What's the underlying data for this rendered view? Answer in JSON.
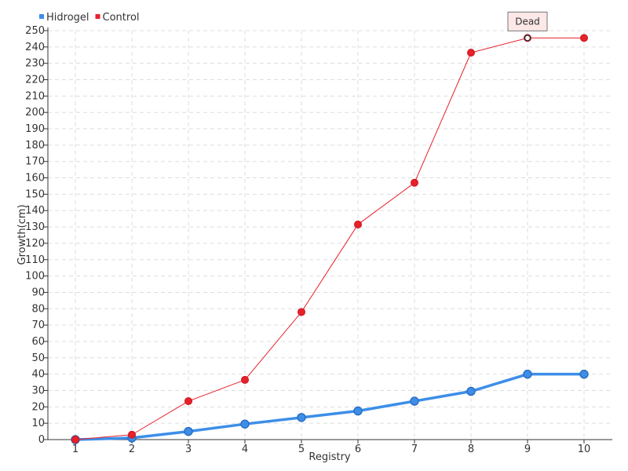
{
  "chart_data": {
    "type": "line",
    "xlabel": "Registry",
    "ylabel": "Growth(cm)",
    "x": [
      1,
      2,
      3,
      4,
      5,
      6,
      7,
      8,
      9,
      10
    ],
    "xlim": [
      1,
      10
    ],
    "ylim": [
      0,
      250
    ],
    "ytick_step": 10,
    "grid": true,
    "legend_position": "top-left",
    "series": [
      {
        "name": "Hidrogel",
        "color": "#3d8ee8",
        "values": [
          0,
          1,
          5,
          9.5,
          13.5,
          17.5,
          23.5,
          29.5,
          40,
          40
        ]
      },
      {
        "name": "Control",
        "color": "#e8202a",
        "values": [
          0,
          3,
          23.5,
          36.5,
          78,
          131.5,
          157,
          236.5,
          245.5,
          245.5
        ]
      }
    ],
    "annotations": [
      {
        "text": "Dead",
        "series": "Control",
        "x": 9,
        "y": 245.5
      }
    ]
  }
}
